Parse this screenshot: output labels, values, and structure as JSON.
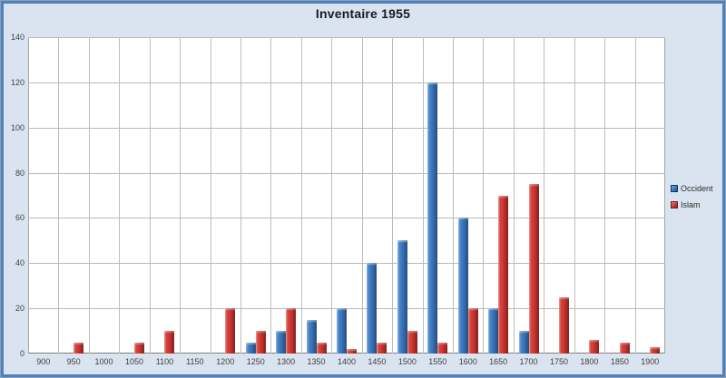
{
  "chart": {
    "title": "Inventaire 1955"
  },
  "colors": {
    "frame_border": "#4f81bd",
    "frame_outer_edge": "#8ba1b8",
    "chart_background": "#dae4f0",
    "plot_background": "#ffffff",
    "gridline": "#b9b9b9",
    "axis_line": "#7f7f7f",
    "tick_label_text": "#3f3f3f",
    "title_text": "#191922",
    "occident_bar": "#3a76bd",
    "islam_bar": "#cf3834"
  },
  "chart_data": {
    "type": "bar",
    "title": "Inventaire 1955",
    "categories": [
      "900",
      "950",
      "1000",
      "1050",
      "1100",
      "1150",
      "1200",
      "1250",
      "1300",
      "1350",
      "1400",
      "1450",
      "1500",
      "1550",
      "1600",
      "1650",
      "1700",
      "1750",
      "1800",
      "1850",
      "1900"
    ],
    "series": [
      {
        "name": "Occident",
        "color": "#3a76bd",
        "values": [
          0,
          0,
          0,
          0,
          0,
          0,
          0,
          5,
          10,
          15,
          20,
          40,
          50,
          120,
          60,
          20,
          10,
          0,
          0,
          0,
          0
        ]
      },
      {
        "name": "Islam",
        "color": "#cf3834",
        "values": [
          0,
          5,
          0,
          5,
          10,
          0,
          20,
          10,
          20,
          5,
          2,
          5,
          10,
          5,
          20,
          70,
          75,
          25,
          6,
          5,
          3
        ]
      }
    ],
    "xlabel": "",
    "ylabel": "",
    "ylim": [
      0,
      140
    ],
    "ytick_step": 20,
    "yticks": [
      "0",
      "20",
      "40",
      "60",
      "80",
      "100",
      "120",
      "140"
    ],
    "grid": true,
    "legend_position": "right",
    "legend": [
      "Occident",
      "Islam"
    ]
  }
}
